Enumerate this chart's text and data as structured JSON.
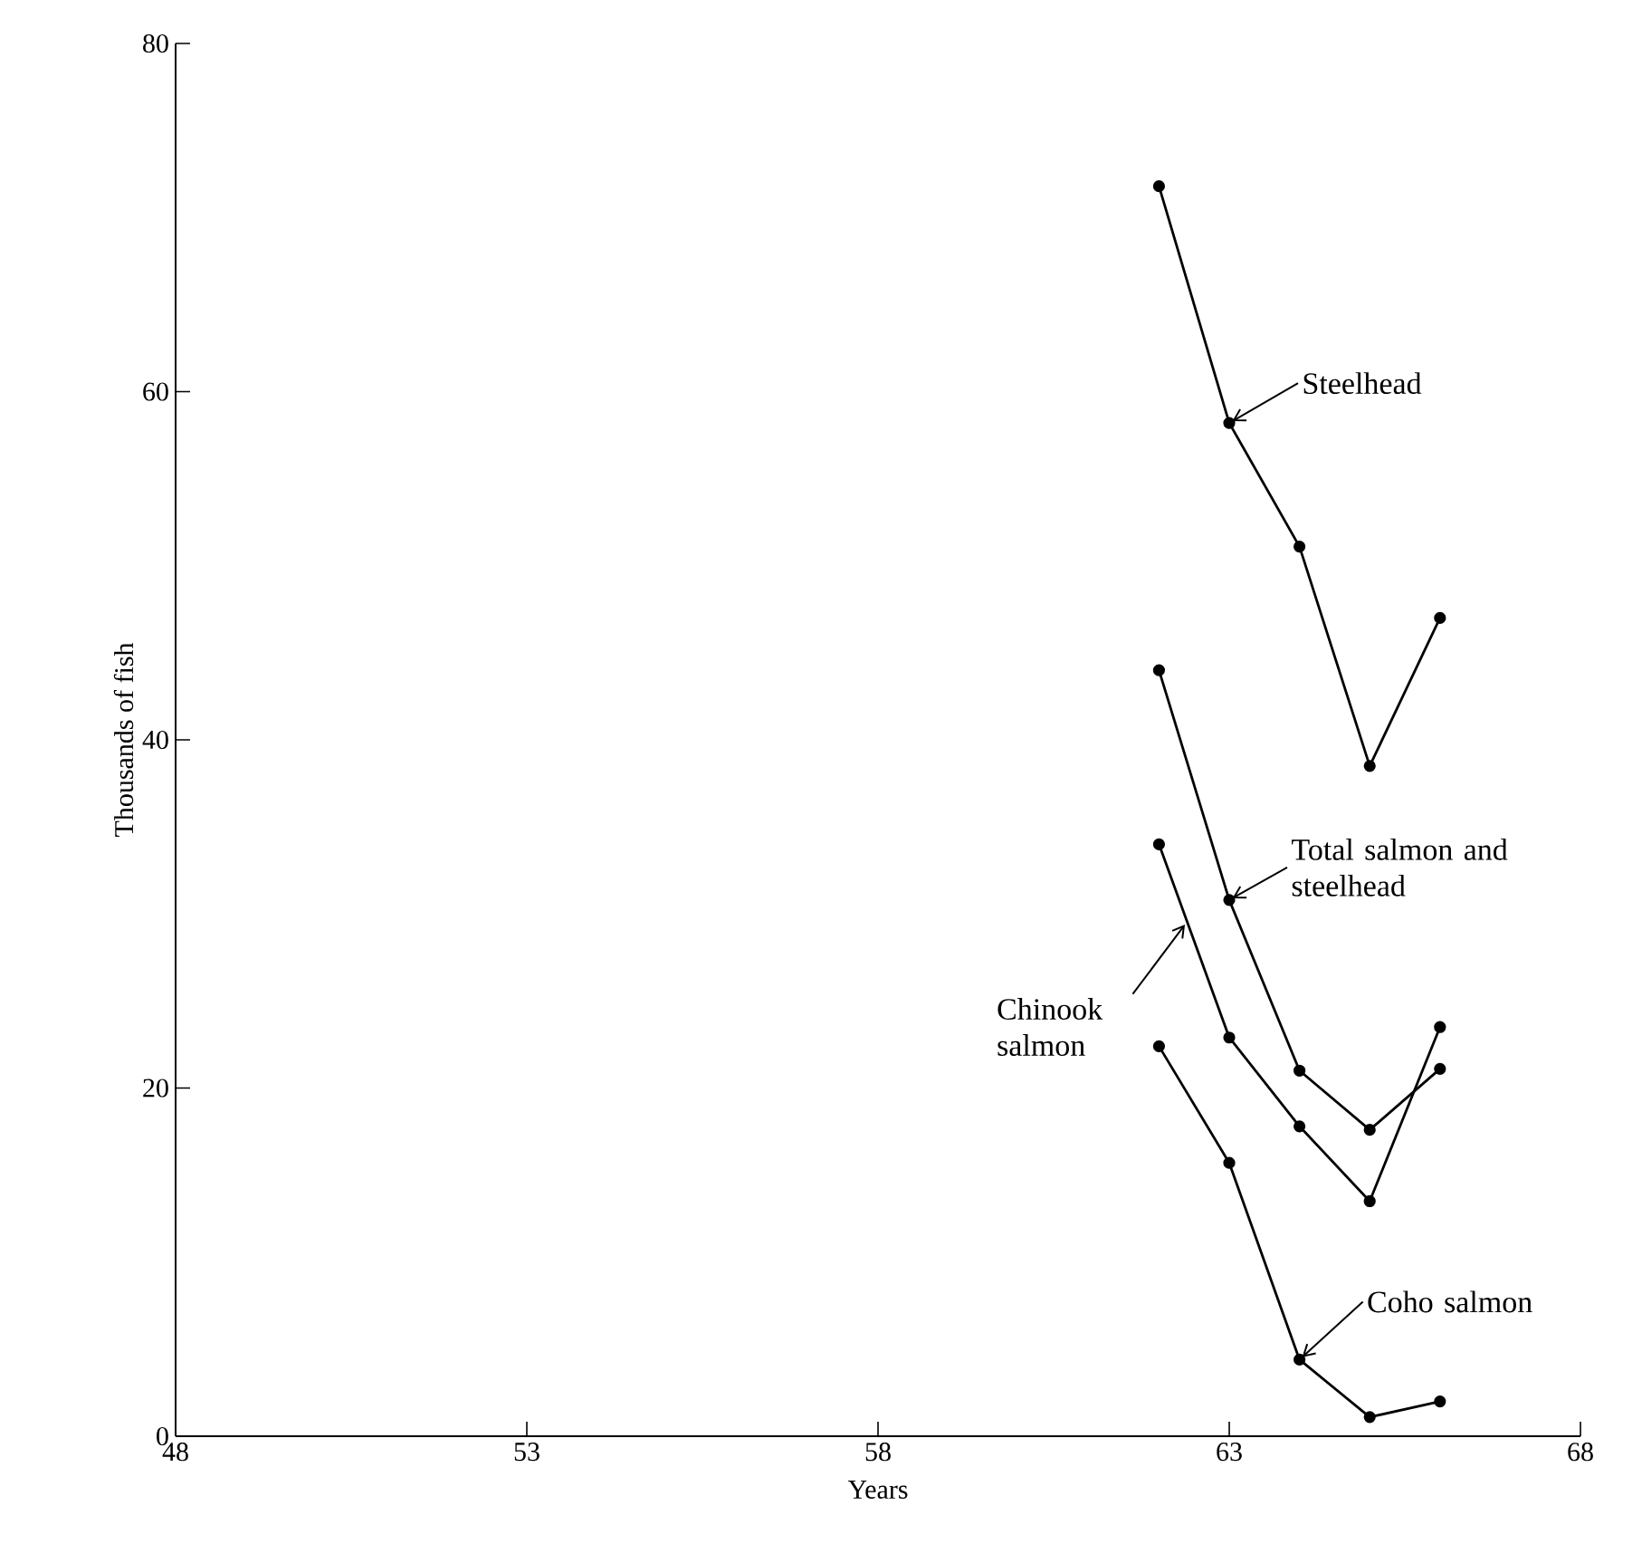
{
  "chart_data": {
    "type": "line",
    "xlabel": "Years",
    "ylabel": "Thousands of fish",
    "x": [
      62,
      63,
      64,
      65,
      66
    ],
    "series": [
      {
        "color": "#000000",
        "values": [
          71.8,
          58.2,
          51.1,
          38.5,
          47
        ]
      },
      {
        "color": "#000000",
        "values": [
          44,
          30.8,
          21,
          17.6,
          21.1
        ]
      },
      {
        "color": "#000000",
        "values": [
          34,
          22.9,
          17.8,
          13.5,
          23.5
        ]
      },
      {
        "color": "#000000",
        "values": [
          22.4,
          15.7,
          4.4,
          1.1,
          2
        ]
      }
    ],
    "xlim": [
      48,
      68
    ],
    "xticks": [
      48,
      53,
      58,
      63,
      68
    ],
    "ylim": [
      0,
      80
    ],
    "yticks": [
      0,
      20,
      40,
      60,
      80
    ],
    "marker": "circle",
    "line_style": "solid",
    "annotations": [
      {
        "text": "Steelhead",
        "x": 63,
        "y": 58.2
      },
      {
        "text": "Total salmon and steelhead",
        "x": 63,
        "y": 30.8
      },
      {
        "text": "Chinook salmon",
        "x": 62.4,
        "y": 29.56
      },
      {
        "text": "Coho salmon",
        "x": 64,
        "y": 4.4
      }
    ]
  }
}
